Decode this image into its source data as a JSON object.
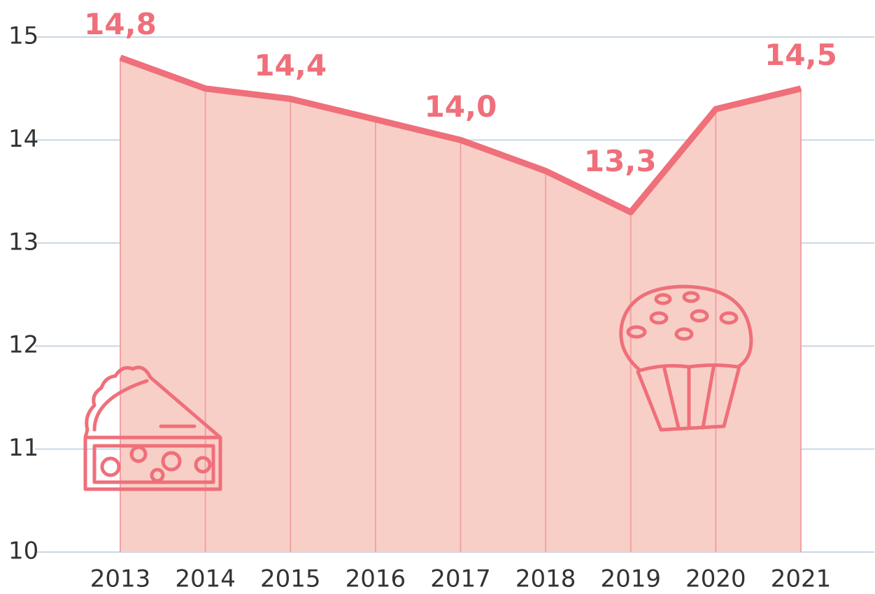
{
  "chart_data": {
    "type": "area",
    "categories": [
      "2013",
      "2014",
      "2015",
      "2016",
      "2017",
      "2018",
      "2019",
      "2020",
      "2021"
    ],
    "values": [
      14.8,
      14.5,
      14.4,
      14.2,
      14.0,
      13.7,
      13.3,
      14.3,
      14.5
    ],
    "value_labels": [
      "14,8",
      null,
      "14,4",
      null,
      "14,0",
      null,
      "13,3",
      null,
      "14,5"
    ],
    "color": "#ef6f7a",
    "fill": "#f8cfc6",
    "ylim": [
      10,
      15
    ],
    "yticks": [
      10,
      11,
      12,
      13,
      14,
      15
    ],
    "grid": true
  }
}
